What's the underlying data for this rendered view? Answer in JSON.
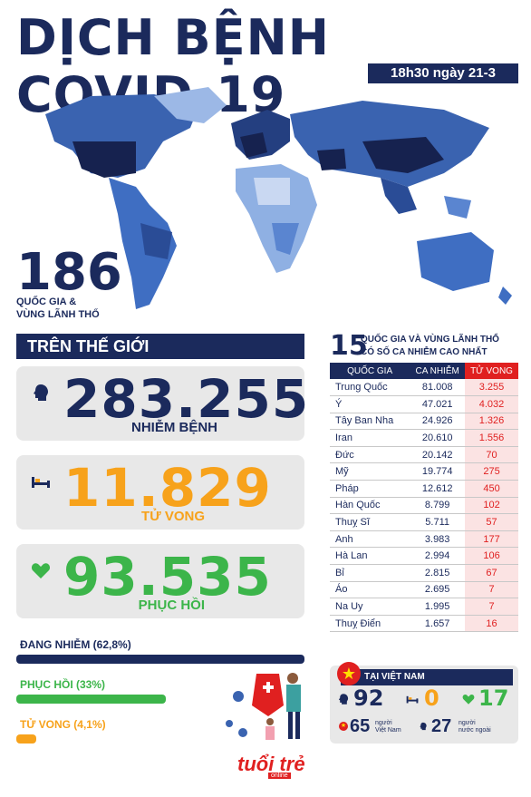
{
  "title": "DỊCH BỆNH COVID-19",
  "timestamp": "18h30 ngày 21-3",
  "countries": {
    "count": "186",
    "label_line1": "QUỐC GIA &",
    "label_line2": "VÙNG LÃNH THỔ"
  },
  "world": {
    "header": "TRÊN THẾ GIỚI",
    "infected": {
      "value": "283.255",
      "label": "NHIỄM BỆNH"
    },
    "deaths": {
      "value": "11.829",
      "label": "TỬ VONG"
    },
    "recovered": {
      "value": "93.535",
      "label": "PHỤC HỒI"
    },
    "active_label": "ĐANG NHIỄM (62,8%)",
    "recovered_pct_label": "PHỤC HỒI (33%)",
    "deaths_pct_label": "TỬ VONG (4,1%)",
    "active_pct": 62.8,
    "recovered_pct": 33,
    "deaths_pct": 4.1
  },
  "top15": {
    "number": "15",
    "title_line1": "QUỐC GIA VÀ VÙNG LÃNH THỔ",
    "title_line2": "CÓ SỐ CA NHIỄM CAO NHẤT",
    "headers": [
      "QUỐC GIA",
      "CA NHIỄM",
      "TỬ VONG"
    ],
    "rows": [
      [
        "Trung Quốc",
        "81.008",
        "3.255"
      ],
      [
        "Ý",
        "47.021",
        "4.032"
      ],
      [
        "Tây Ban Nha",
        "24.926",
        "1.326"
      ],
      [
        "Iran",
        "20.610",
        "1.556"
      ],
      [
        "Đức",
        "20.142",
        "70"
      ],
      [
        "Mỹ",
        "19.774",
        "275"
      ],
      [
        "Pháp",
        "12.612",
        "450"
      ],
      [
        "Hàn Quốc",
        "8.799",
        "102"
      ],
      [
        "Thuỵ Sĩ",
        "5.711",
        "57"
      ],
      [
        "Anh",
        "3.983",
        "177"
      ],
      [
        "Hà Lan",
        "2.994",
        "106"
      ],
      [
        "Bỉ",
        "2.815",
        "67"
      ],
      [
        "Áo",
        "2.695",
        "7"
      ],
      [
        "Na Uy",
        "1.995",
        "7"
      ],
      [
        "Thuỵ Điển",
        "1.657",
        "16"
      ]
    ]
  },
  "vietnam": {
    "header": "TẠI VIỆT NAM",
    "infected": "92",
    "deaths": "0",
    "recovered": "17",
    "vietnamese": "65",
    "vietnamese_label_1": "người",
    "vietnamese_label_2": "Việt Nam",
    "foreigners": "27",
    "foreigners_label_1": "người",
    "foreigners_label_2": "nước ngoài"
  },
  "brand": {
    "name": "tuổi trẻ",
    "sub": "online"
  },
  "colors": {
    "navy": "#1b2a5c",
    "orange": "#f7a21b",
    "green": "#3cb54a",
    "red": "#e02020"
  }
}
